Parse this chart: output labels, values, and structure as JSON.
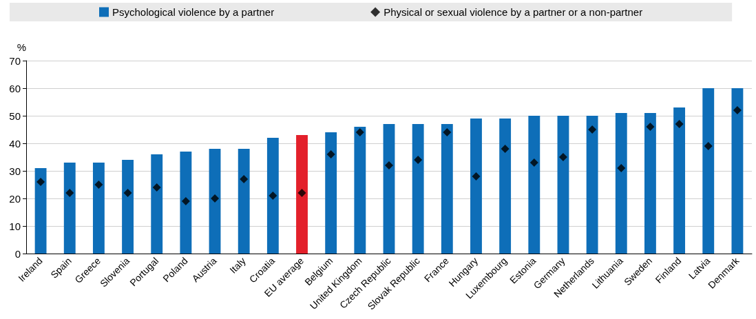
{
  "chart_data": {
    "type": "bar",
    "ylabel": "%",
    "categories": [
      "Ireland",
      "Spain",
      "Greece",
      "Slovenia",
      "Portugal",
      "Poland",
      "Austria",
      "Italy",
      "Croatia",
      "EU average",
      "Belgium",
      "United Kingdom",
      "Czech Republic",
      "Slovak Republic",
      "France",
      "Hungary",
      "Luxembourg",
      "Estonia",
      "Germany",
      "Netherlands",
      "Lithuania",
      "Sweden",
      "Finland",
      "Latvia",
      "Denmark"
    ],
    "series": [
      {
        "name": "Psychological violence by a partner",
        "color": "#0e6eb8",
        "colors": [
          "#0e6eb8",
          "#0e6eb8",
          "#0e6eb8",
          "#0e6eb8",
          "#0e6eb8",
          "#0e6eb8",
          "#0e6eb8",
          "#0e6eb8",
          "#0e6eb8",
          "#e3202b",
          "#0e6eb8",
          "#0e6eb8",
          "#0e6eb8",
          "#0e6eb8",
          "#0e6eb8",
          "#0e6eb8",
          "#0e6eb8",
          "#0e6eb8",
          "#0e6eb8",
          "#0e6eb8",
          "#0e6eb8",
          "#0e6eb8",
          "#0e6eb8",
          "#0e6eb8",
          "#0e6eb8"
        ],
        "values": [
          31,
          33,
          33,
          34,
          36,
          37,
          38,
          38,
          42,
          43,
          44,
          46,
          47,
          47,
          47,
          49,
          49,
          50,
          50,
          50,
          51,
          51,
          53,
          60,
          60
        ]
      },
      {
        "name": "Physical or sexual violence by a partner or a non-partner",
        "type": "scatter",
        "marker": "diamond",
        "color": "#000000",
        "values": [
          26,
          22,
          25,
          22,
          24,
          19,
          20,
          27,
          21,
          22,
          36,
          44,
          32,
          34,
          44,
          28,
          38,
          33,
          35,
          45,
          31,
          46,
          47,
          39,
          52
        ]
      }
    ],
    "ylim": [
      0,
      70
    ],
    "yticks": [
      0,
      10,
      20,
      30,
      40,
      50,
      60,
      70
    ],
    "grid": "y",
    "legend": "top"
  }
}
